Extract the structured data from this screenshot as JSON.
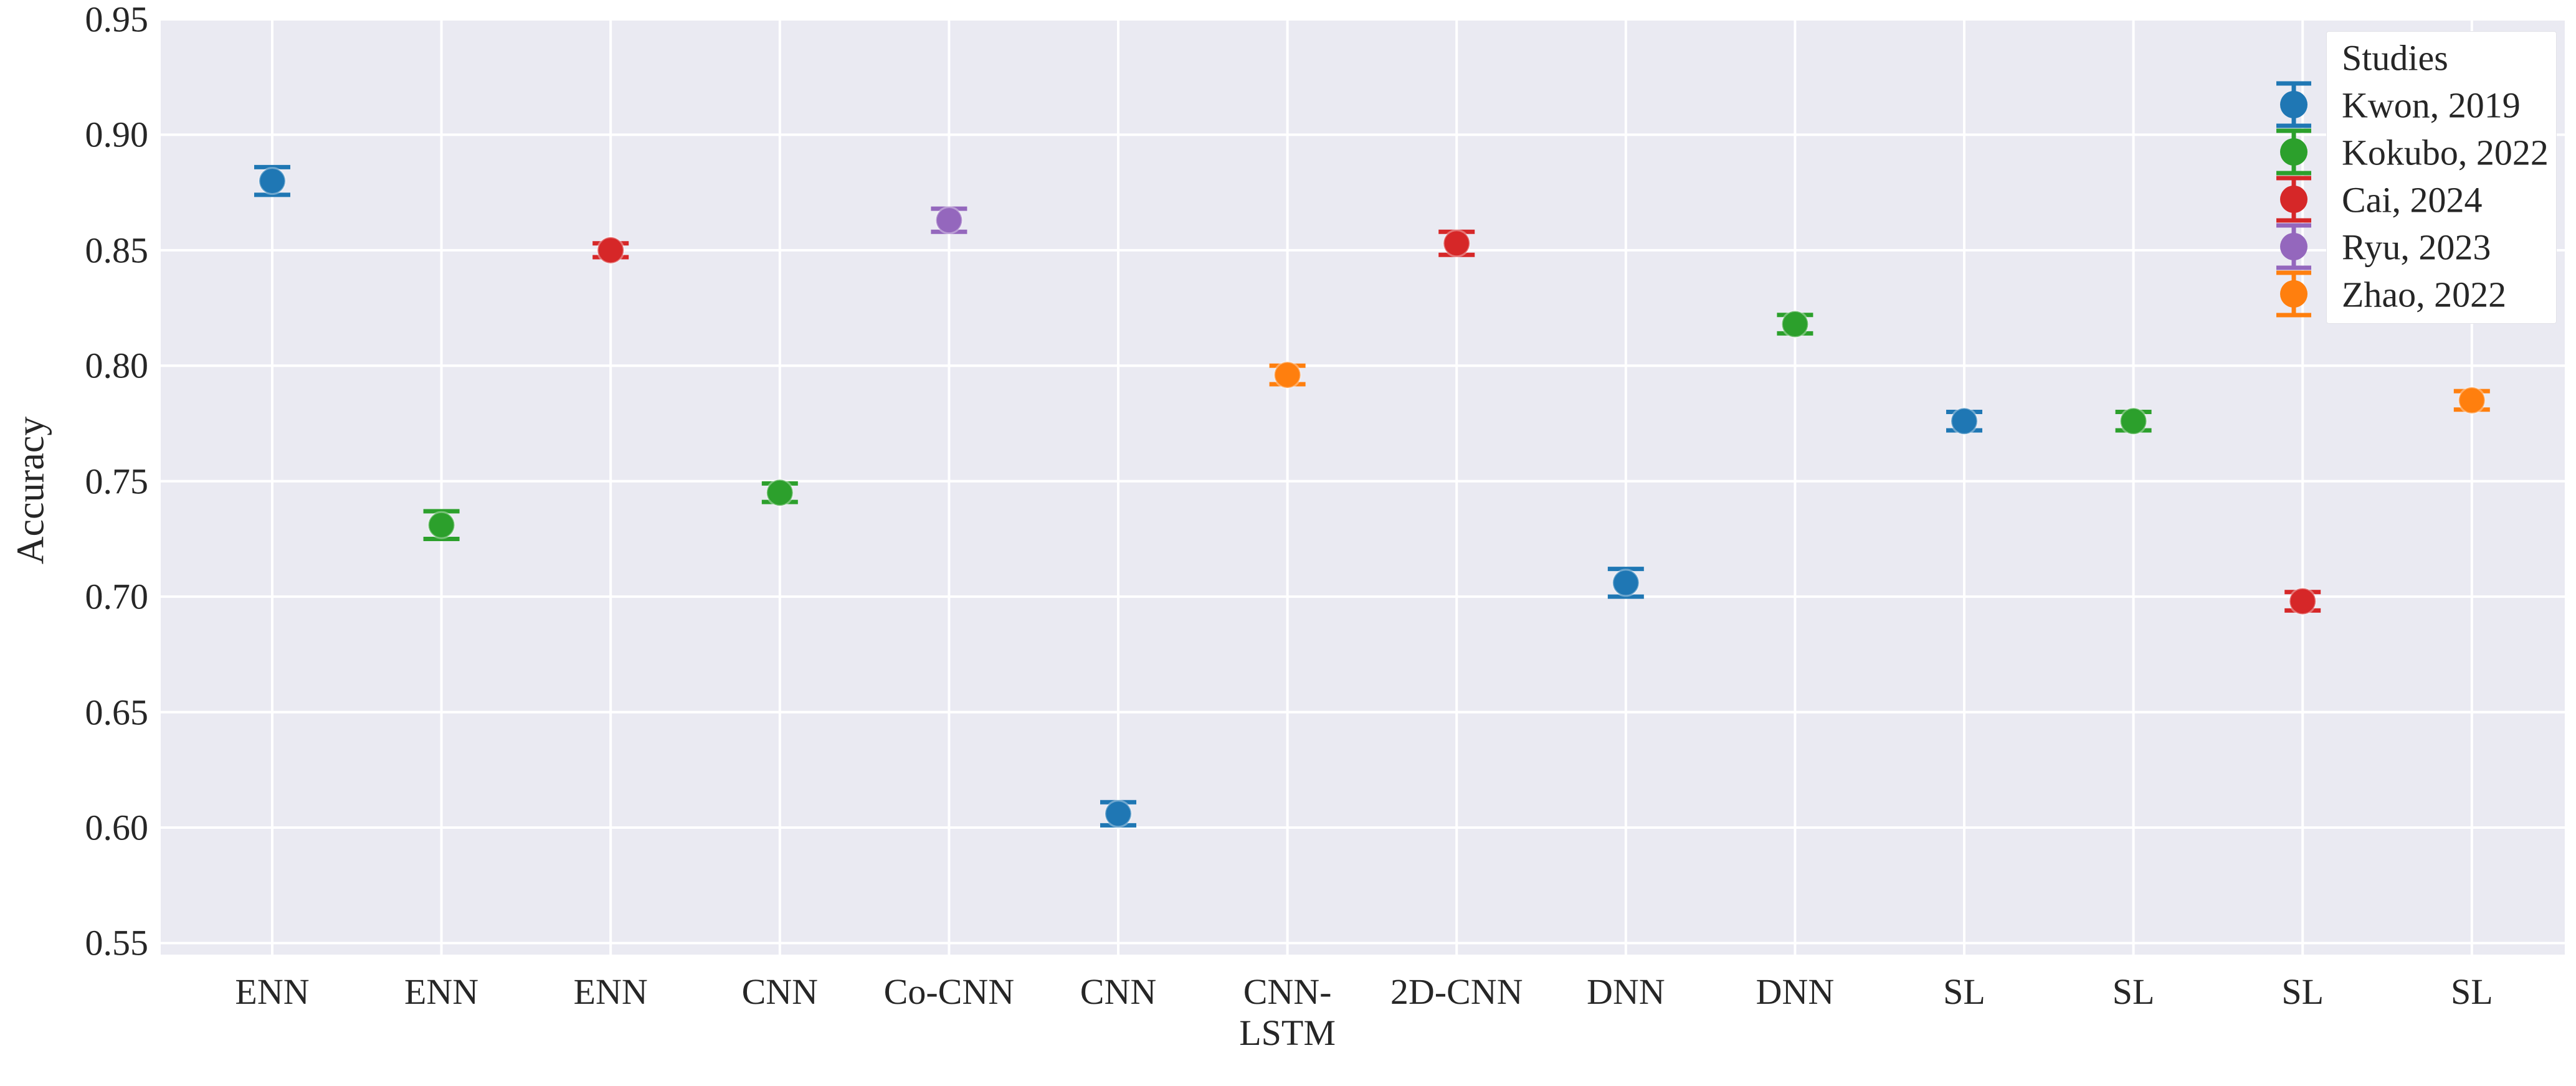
{
  "figure": {
    "background": "#ffffff",
    "plot_background": "#eaeaf2",
    "grid_color": "#ffffff",
    "text_color": "#262626"
  },
  "chart_data": {
    "type": "scatter",
    "title": "",
    "xlabel": "",
    "ylabel": "Accuracy",
    "ylim": [
      0.545,
      0.95
    ],
    "grid": true,
    "yticks": [
      "0.55",
      "0.60",
      "0.65",
      "0.70",
      "0.75",
      "0.80",
      "0.85",
      "0.90",
      "0.95"
    ],
    "categories": [
      "ENN",
      "ENN",
      "ENN",
      "CNN",
      "Co-CNN",
      "CNN",
      "CNN-\nLSTM",
      "2D-CNN",
      "DNN",
      "DNN",
      "SL",
      "SL",
      "SL",
      "SL"
    ],
    "legend": {
      "title": "Studies",
      "position": "upper right",
      "entries": [
        {
          "label": "Kwon, 2019",
          "color": "#1f77b4"
        },
        {
          "label": "Kokubo, 2022",
          "color": "#2ca02c"
        },
        {
          "label": "Cai, 2024",
          "color": "#d62728"
        },
        {
          "label": "Ryu, 2023",
          "color": "#9467bd"
        },
        {
          "label": "Zhao, 2022",
          "color": "#ff7f0e"
        }
      ]
    },
    "series": [
      {
        "name": "Kwon, 2019",
        "color": "#1f77b4",
        "points": [
          {
            "category_index": 0,
            "category": "ENN",
            "accuracy": 0.88,
            "error": 0.006
          },
          {
            "category_index": 5,
            "category": "CNN",
            "accuracy": 0.606,
            "error": 0.005
          },
          {
            "category_index": 8,
            "category": "DNN",
            "accuracy": 0.706,
            "error": 0.006
          },
          {
            "category_index": 10,
            "category": "SL",
            "accuracy": 0.776,
            "error": 0.004
          }
        ]
      },
      {
        "name": "Kokubo, 2022",
        "color": "#2ca02c",
        "points": [
          {
            "category_index": 1,
            "category": "ENN",
            "accuracy": 0.731,
            "error": 0.006
          },
          {
            "category_index": 3,
            "category": "CNN",
            "accuracy": 0.745,
            "error": 0.004
          },
          {
            "category_index": 9,
            "category": "DNN",
            "accuracy": 0.818,
            "error": 0.004
          },
          {
            "category_index": 11,
            "category": "SL",
            "accuracy": 0.776,
            "error": 0.004
          }
        ]
      },
      {
        "name": "Cai, 2024",
        "color": "#d62728",
        "points": [
          {
            "category_index": 2,
            "category": "ENN",
            "accuracy": 0.85,
            "error": 0.003
          },
          {
            "category_index": 7,
            "category": "2D-CNN",
            "accuracy": 0.853,
            "error": 0.005
          },
          {
            "category_index": 12,
            "category": "SL",
            "accuracy": 0.698,
            "error": 0.004
          }
        ]
      },
      {
        "name": "Ryu, 2023",
        "color": "#9467bd",
        "points": [
          {
            "category_index": 4,
            "category": "Co-CNN",
            "accuracy": 0.863,
            "error": 0.005
          }
        ]
      },
      {
        "name": "Zhao, 2022",
        "color": "#ff7f0e",
        "points": [
          {
            "category_index": 6,
            "category": "CNN-LSTM",
            "accuracy": 0.796,
            "error": 0.004
          },
          {
            "category_index": 13,
            "category": "SL",
            "accuracy": 0.785,
            "error": 0.004
          }
        ]
      }
    ]
  }
}
